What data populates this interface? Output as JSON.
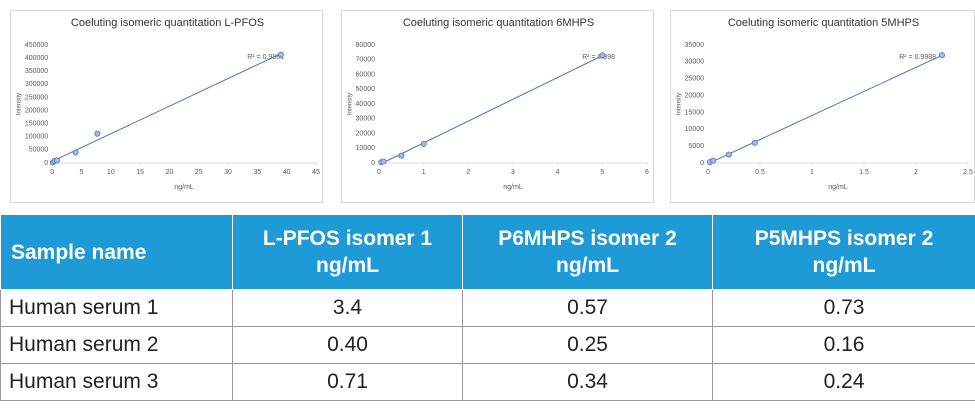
{
  "chart_data": [
    {
      "type": "scatter",
      "title": "Coeluting isomeric quantitation L-PFOS",
      "xlabel": "ng/mL",
      "ylabel": "Intensity",
      "annotation": "R² = 0.9961",
      "color": "#4472c4",
      "x": [
        0.1,
        0.4,
        0.8,
        4,
        7.7,
        39
      ],
      "values": [
        2000,
        8000,
        10000,
        40000,
        112000,
        413000
      ],
      "xlim": [
        0,
        45
      ],
      "xticks": [
        0,
        5,
        10,
        15,
        20,
        25,
        30,
        35,
        40,
        45
      ],
      "ylim": [
        0,
        450000
      ],
      "yticks": [
        0,
        50000,
        100000,
        150000,
        200000,
        250000,
        300000,
        350000,
        400000,
        450000
      ]
    },
    {
      "type": "scatter",
      "title": "Coeluting isomeric quantitation 6MHPS",
      "xlabel": "ng/mL",
      "ylabel": "Intensity",
      "annotation": "R² = 0.998",
      "color": "#4472c4",
      "x": [
        0.05,
        0.1,
        0.5,
        1,
        5
      ],
      "values": [
        500,
        1000,
        5000,
        13000,
        73000
      ],
      "xlim": [
        0,
        6
      ],
      "xticks": [
        0,
        1,
        2,
        3,
        4,
        5,
        6
      ],
      "ylim": [
        0,
        80000
      ],
      "yticks": [
        0,
        10000,
        20000,
        30000,
        40000,
        50000,
        60000,
        70000,
        80000
      ]
    },
    {
      "type": "scatter",
      "title": "Coeluting isomeric quantitation 5MHPS",
      "xlabel": "ng/mL",
      "ylabel": "Intensity",
      "annotation": "R² = 0.9988",
      "color": "#4472c4",
      "x": [
        0.02,
        0.05,
        0.2,
        0.45,
        2.25
      ],
      "values": [
        300,
        700,
        2500,
        6000,
        32000
      ],
      "xlim": [
        0,
        2.5
      ],
      "xticks": [
        0,
        0.5,
        1,
        1.5,
        2,
        2.5
      ],
      "ylim": [
        0,
        35000
      ],
      "yticks": [
        0,
        5000,
        10000,
        15000,
        20000,
        25000,
        30000,
        35000
      ]
    }
  ],
  "table": {
    "header": [
      "Sample name",
      "L-PFOS isomer 1 ng/mL",
      "P6MHPS isomer 2 ng/mL",
      "P5MHPS isomer 2 ng/mL"
    ],
    "rows": [
      [
        "Human serum 1",
        "3.4",
        "0.57",
        "0.73"
      ],
      [
        "Human serum 2",
        "0.40",
        "0.25",
        "0.16"
      ],
      [
        "Human serum 3",
        "0.71",
        "0.34",
        "0.24"
      ]
    ]
  }
}
